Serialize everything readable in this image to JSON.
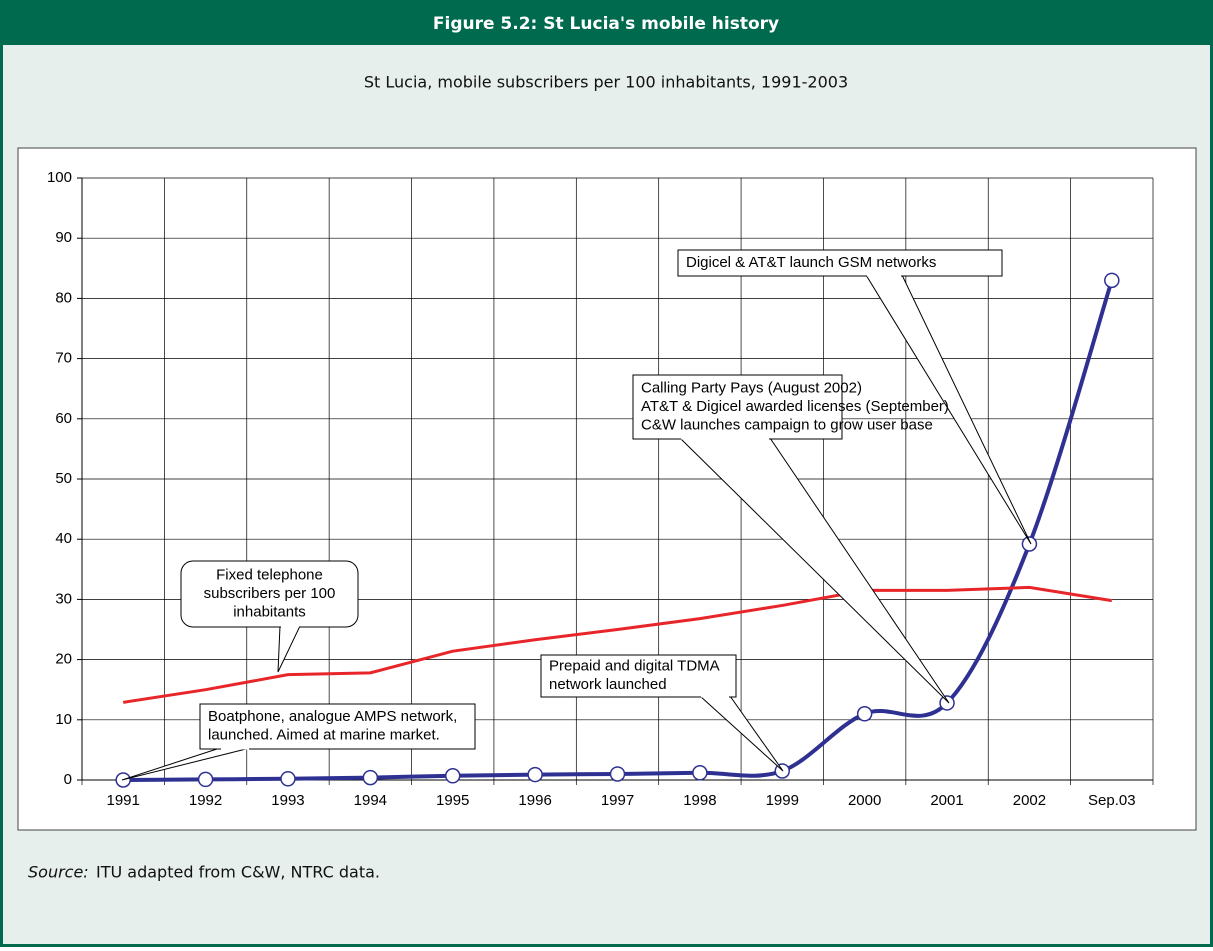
{
  "chart_data": {
    "type": "line",
    "title": "Figure 5.2: St Lucia's mobile history",
    "subtitle": "St Lucia, mobile subscribers per 100 inhabitants, 1991-2003",
    "categories": [
      "1991",
      "1992",
      "1993",
      "1994",
      "1995",
      "1996",
      "1997",
      "1998",
      "1999",
      "2000",
      "2001",
      "2002",
      "Sep.03"
    ],
    "series": [
      {
        "color": "#2e3192",
        "smooth": true,
        "markers": true,
        "values": [
          0,
          0.1,
          0.2,
          0.4,
          0.7,
          0.9,
          1.0,
          1.2,
          1.5,
          11,
          12.8,
          39.2,
          83
        ]
      },
      {
        "color": "#e8262a",
        "smooth": false,
        "markers": false,
        "values": [
          12.9,
          15,
          17.5,
          17.8,
          21.4,
          23.3,
          25,
          26.8,
          29,
          31.5,
          31.5,
          32,
          29.8
        ]
      }
    ],
    "ylim": [
      0,
      100
    ],
    "yticks": [
      0,
      10,
      20,
      30,
      40,
      50,
      60,
      70,
      80,
      90,
      100
    ],
    "grid": true,
    "annotations": [
      {
        "lines": [
          "Digicel & AT&T launch GSM networks"
        ]
      },
      {
        "lines": [
          "Calling Party Pays (August 2002)",
          "AT&T & Digicel awarded licenses (September)",
          "C&W launches campaign to grow user base"
        ]
      },
      {
        "lines": [
          "Fixed telephone",
          "subscribers per 100",
          "inhabitants"
        ]
      },
      {
        "lines": [
          "Prepaid and digital TDMA",
          "network launched"
        ]
      },
      {
        "lines": [
          "Boatphone, analogue AMPS network,",
          " launched. Aimed at marine market."
        ]
      }
    ],
    "source_label": "Source:",
    "source_text": "ITU adapted from C&W, NTRC data."
  }
}
